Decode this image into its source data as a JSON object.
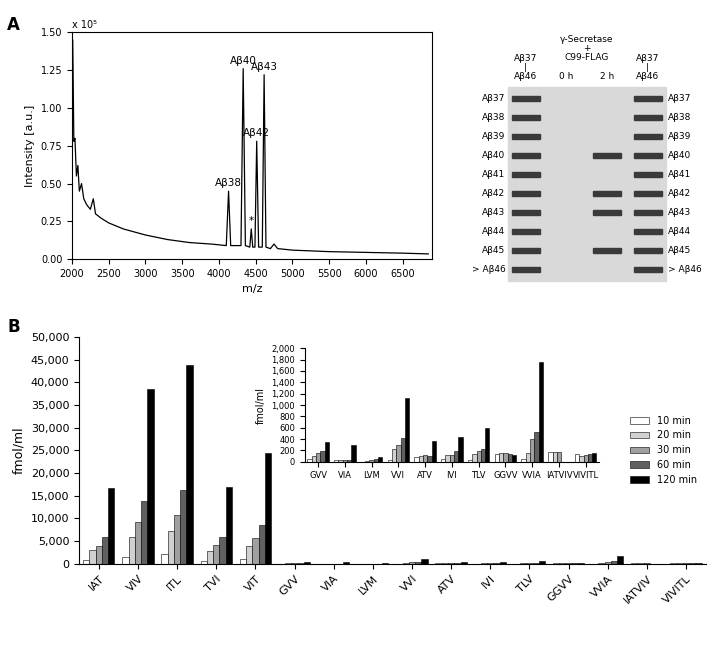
{
  "panel_labels": [
    "A",
    "B"
  ],
  "chart_data": [
    {
      "type": "line",
      "x_label": "m/z",
      "y_label": "Intensity [a.u.]",
      "y_multiplier": "x 10⁵",
      "x": [
        2000,
        2010,
        2025,
        2040,
        2060,
        2080,
        2100,
        2130,
        2160,
        2200,
        2250,
        2290,
        2320,
        2400,
        2500,
        2700,
        3000,
        3300,
        3600,
        3900,
        4100,
        4131,
        4160,
        4300,
        4330,
        4360,
        4420,
        4440,
        4460,
        4490,
        4514,
        4540,
        4590,
        4615,
        4640,
        4700,
        4750,
        4800,
        5000,
        5500,
        6000,
        6500,
        6850
      ],
      "values": [
        0.7,
        1.45,
        0.78,
        0.8,
        0.55,
        0.62,
        0.45,
        0.5,
        0.4,
        0.36,
        0.33,
        0.4,
        0.3,
        0.27,
        0.24,
        0.2,
        0.16,
        0.13,
        0.11,
        0.1,
        0.09,
        0.45,
        0.09,
        0.09,
        1.26,
        0.09,
        0.08,
        0.2,
        0.08,
        0.08,
        0.78,
        0.08,
        0.08,
        1.22,
        0.08,
        0.07,
        0.1,
        0.07,
        0.06,
        0.05,
        0.045,
        0.04,
        0.035
      ],
      "color": "#000000",
      "xlim": [
        2000,
        6900
      ],
      "xticks": [
        2000,
        2500,
        3000,
        3500,
        4000,
        4500,
        5000,
        5500,
        6000,
        6500
      ],
      "ylim": [
        0,
        1.5
      ],
      "yticks": [
        {
          "value": 0,
          "label": "0.00"
        },
        {
          "value": 0.25,
          "label": "0.25"
        },
        {
          "value": 0.5,
          "label": "0.50"
        },
        {
          "value": 0.75,
          "label": "0.75"
        },
        {
          "value": 1.0,
          "label": "1.00"
        },
        {
          "value": 1.25,
          "label": "1.25"
        },
        {
          "value": 1.5,
          "label": "1.50"
        }
      ],
      "annotations": [
        {
          "text": "Aβ38",
          "x": 4131,
          "y": 0.45
        },
        {
          "text": "Aβ40",
          "x": 4330,
          "y": 1.26
        },
        {
          "text": "Aβ42",
          "x": 4514,
          "y": 0.78
        },
        {
          "text": "Aβ43",
          "x": 4615,
          "y": 1.22
        },
        {
          "text": "*",
          "x": 4440,
          "y": 0.2
        }
      ]
    },
    {
      "type": "bar",
      "y_label": "fmol/ml",
      "categories": [
        "IAT",
        "VIV",
        "ITL",
        "TVI",
        "VIT",
        "GVV",
        "VIA",
        "LVM",
        "VVI",
        "ATV",
        "IVI",
        "TLV",
        "GGVV",
        "VVIA",
        "IATVIV",
        "VIVITL"
      ],
      "series": [
        {
          "name": "10 min",
          "color": "#ffffff",
          "values": [
            900,
            1600,
            2200,
            700,
            1000,
            50,
            30,
            0,
            30,
            90,
            40,
            30,
            130,
            50,
            170,
            130
          ]
        },
        {
          "name": "20 min",
          "color": "#d0d0d0",
          "values": [
            3000,
            5900,
            7200,
            2800,
            3900,
            100,
            30,
            5,
            230,
            100,
            110,
            140,
            150,
            150,
            170,
            100
          ]
        },
        {
          "name": "30 min",
          "color": "#a0a0a0",
          "values": [
            4000,
            9100,
            10700,
            4100,
            5700,
            150,
            30,
            30,
            290,
            120,
            120,
            180,
            150,
            400,
            170,
            120
          ]
        },
        {
          "name": "60 min",
          "color": "#606060",
          "values": [
            6000,
            13800,
            16200,
            6000,
            8600,
            180,
            30,
            50,
            410,
            100,
            180,
            230,
            130,
            530,
            0,
            130
          ]
        },
        {
          "name": "120 min",
          "color": "#000000",
          "values": [
            16800,
            38500,
            43800,
            17000,
            24500,
            350,
            290,
            75,
            1130,
            370,
            430,
            590,
            120,
            1750,
            0,
            150
          ]
        }
      ],
      "ylim": [
        0,
        50000
      ],
      "yticks": [
        0,
        {
          "value": 5000,
          "label": "5,000"
        },
        {
          "value": 10000,
          "label": "10,000"
        },
        {
          "value": 15000,
          "label": "15,000"
        },
        {
          "value": 20000,
          "label": "20,000"
        },
        {
          "value": 25000,
          "label": "25,000"
        },
        {
          "value": 30000,
          "label": "30,000"
        },
        {
          "value": 35000,
          "label": "35,000"
        },
        {
          "value": 40000,
          "label": "40,000"
        },
        {
          "value": 45000,
          "label": "45,000"
        },
        {
          "value": 50000,
          "label": "50,000"
        }
      ],
      "legend": "right"
    },
    {
      "type": "bar",
      "y_label": "fmol/ml",
      "categories": [
        "GVV",
        "VIA",
        "LVM",
        "VVI",
        "ATV",
        "IVI",
        "TLV",
        "GGVV",
        "VVIA",
        "IATVIV",
        "VIVITL"
      ],
      "series": [
        {
          "name": "10 min",
          "color": "#ffffff",
          "values": [
            50,
            30,
            0,
            30,
            90,
            40,
            30,
            130,
            50,
            170,
            130
          ]
        },
        {
          "name": "20 min",
          "color": "#d0d0d0",
          "values": [
            100,
            30,
            5,
            230,
            100,
            110,
            140,
            150,
            150,
            170,
            100
          ]
        },
        {
          "name": "30 min",
          "color": "#a0a0a0",
          "values": [
            150,
            30,
            30,
            290,
            120,
            120,
            180,
            150,
            400,
            170,
            120
          ]
        },
        {
          "name": "60 min",
          "color": "#606060",
          "values": [
            180,
            30,
            50,
            410,
            100,
            180,
            230,
            130,
            530,
            0,
            130
          ]
        },
        {
          "name": "120 min",
          "color": "#000000",
          "values": [
            350,
            290,
            75,
            1130,
            370,
            430,
            590,
            120,
            1750,
            0,
            150
          ]
        }
      ],
      "ylim": [
        0,
        2000
      ],
      "yticks": [
        0,
        200,
        400,
        600,
        800,
        {
          "value": 1000,
          "label": "1,000"
        },
        {
          "value": 1200,
          "label": "1,200"
        },
        {
          "value": 1400,
          "label": "1,400"
        },
        {
          "value": 1600,
          "label": "1,600"
        },
        {
          "value": 1800,
          "label": "1,800"
        },
        {
          "value": 2000,
          "label": "2,000"
        }
      ]
    }
  ],
  "gel": {
    "band_labels_left": [
      "Aβ37",
      "Aβ38",
      "Aβ39",
      "Aβ40",
      "Aβ41",
      "Aβ42",
      "Aβ43",
      "Aβ44",
      "Aβ45",
      "> Aβ46"
    ],
    "band_labels_right": [
      "Aβ37",
      "Aβ38",
      "Aβ39",
      "Aβ40",
      "Aβ41",
      "Aβ42",
      "Aβ43",
      "Aβ44",
      "Aβ45",
      "> Aβ46"
    ],
    "treatment_header": [
      "γ-Secretase",
      "+",
      "C99-FLAG"
    ],
    "lanes": [
      {
        "header": [
          "Aβ37",
          "|",
          "Aβ46"
        ],
        "bands": [
          "Aβ37",
          "Aβ38",
          "Aβ39",
          "Aβ40",
          "Aβ41",
          "Aβ42",
          "Aβ43",
          "Aβ44",
          "Aβ45",
          "> Aβ46"
        ]
      },
      {
        "header": [
          "0 h"
        ],
        "bands": []
      },
      {
        "header": [
          "2 h"
        ],
        "bands": [
          "Aβ40",
          "Aβ42",
          "Aβ43",
          "Aβ45"
        ]
      },
      {
        "header": [
          "Aβ37",
          "|",
          "Aβ46"
        ],
        "bands": [
          "Aβ37",
          "Aβ38",
          "Aβ39",
          "Aβ40",
          "Aβ41",
          "Aβ42",
          "Aβ43",
          "Aβ44",
          "Aβ45",
          "> Aβ46"
        ]
      }
    ]
  }
}
